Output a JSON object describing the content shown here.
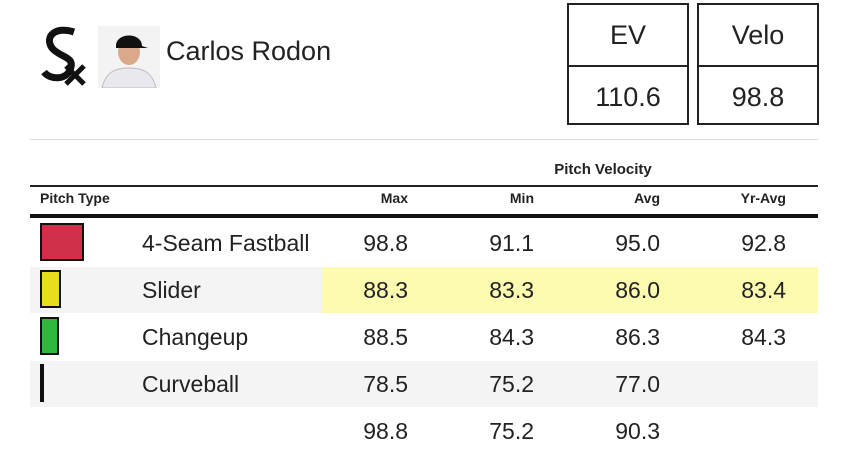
{
  "header": {
    "player": "Carlos Rodon"
  },
  "stats": [
    {
      "label": "EV",
      "value": "110.6"
    },
    {
      "label": "Velo",
      "value": "98.8"
    }
  ],
  "table": {
    "group_header": "Pitch Velocity",
    "columns": [
      "Pitch Type",
      "Max",
      "Min",
      "Avg",
      "Yr-Avg"
    ],
    "rows": [
      {
        "pitch": "4-Seam Fastball",
        "usage": 47,
        "color": "#d0304a",
        "cells": [
          "98.8",
          "91.1",
          "95.0",
          "92.8"
        ]
      },
      {
        "pitch": "Slider",
        "usage": 22,
        "color": "#e6de1c",
        "cells": [
          "88.3",
          "83.3",
          "86.0",
          "83.4"
        ],
        "highlight": "#fdfbb0"
      },
      {
        "pitch": "Changeup",
        "usage": 20,
        "color": "#2eb83e",
        "cells": [
          "88.5",
          "84.3",
          "86.3",
          "84.3"
        ]
      },
      {
        "pitch": "Curveball",
        "usage": 3,
        "color": "#111111",
        "cells": [
          "78.5",
          "75.2",
          "77.0"
        ]
      }
    ],
    "totals": [
      "98.8",
      "75.2",
      "90.3"
    ]
  }
}
